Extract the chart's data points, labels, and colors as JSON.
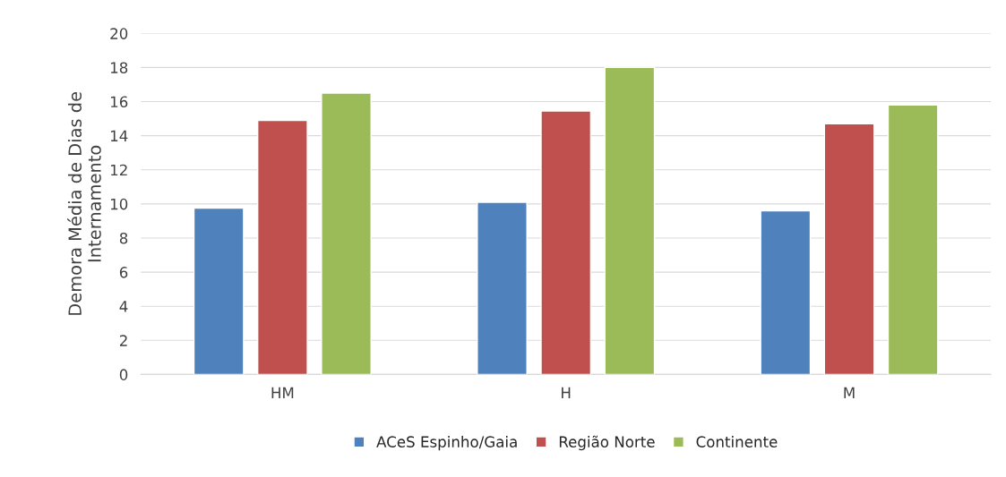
{
  "chart_data": {
    "type": "bar",
    "ylabel": "Demora Média de Dias de\nInternamento",
    "categories": [
      "HM",
      "H",
      "M"
    ],
    "series": [
      {
        "name": "ACeS Espinho/Gaia",
        "color": "#4f81bd",
        "values": [
          9.75,
          10.1,
          9.6
        ]
      },
      {
        "name": "Região Norte",
        "color": "#c0504d",
        "values": [
          14.9,
          15.45,
          14.7
        ]
      },
      {
        "name": "Continente",
        "color": "#9bbb59",
        "values": [
          16.5,
          18.0,
          15.8
        ]
      }
    ],
    "ylim": [
      0,
      20
    ],
    "yticks": [
      0,
      2,
      4,
      6,
      8,
      10,
      12,
      14,
      16,
      18,
      20
    ],
    "grid": "y",
    "legend": "bottom"
  }
}
